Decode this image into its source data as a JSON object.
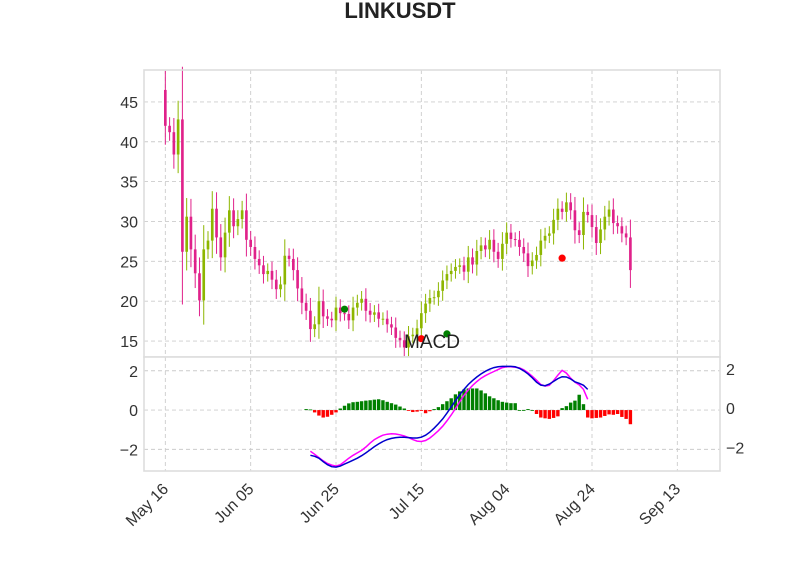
{
  "chart_data": [
    {
      "type": "candlestick",
      "title": "LINKUSDT",
      "ylim": [
        13,
        49
      ],
      "yticks": [
        15,
        20,
        25,
        30,
        35,
        40,
        45
      ],
      "x_start": "2021-05-16",
      "xlim": [
        "2021-05-11",
        "2021-09-23"
      ],
      "x_ticks": [
        "May 16",
        "Jun 05",
        "Jun 25",
        "Jul 15",
        "Aug 04",
        "Aug 24",
        "Sep 13"
      ],
      "grid": true,
      "colors": {
        "up": "#8db600",
        "down": "#e0218a",
        "buy_marker": "#008000",
        "sell_marker": "#ff0000"
      },
      "closes": [
        42,
        41.2,
        38.4,
        42.8,
        26.2,
        30.6,
        26.5,
        23.5,
        20.1,
        26.5,
        27.6,
        31.6,
        28,
        25.5,
        28.6,
        31.4,
        29.4,
        30.3,
        31.4,
        27.7,
        26.8,
        25.3,
        24.5,
        23.4,
        23.8,
        22.7,
        21.5,
        22.1,
        25.7,
        25.3,
        23.9,
        21.6,
        19.8,
        18.8,
        16.5,
        17.1,
        20.0,
        18.1,
        17.8,
        17.6,
        19.2,
        18.5,
        18.4,
        17.6,
        19.2,
        19.8,
        20.3,
        18.8,
        18.3,
        18.6,
        17.8,
        17.8,
        17.1,
        16.7,
        15.4,
        15.1,
        14.2,
        15.6,
        15.8,
        16.6,
        18.5,
        19.7,
        20.4,
        20.5,
        21.3,
        22.6,
        23.4,
        23.8,
        24.3,
        24.5,
        23.7,
        25.5,
        24.6,
        26.3,
        27.0,
        26.5,
        27.7,
        26.2,
        25.3,
        27.2,
        28.6,
        27.8,
        27.7,
        26.8,
        26.0,
        24.4,
        25.1,
        25.8,
        27.6,
        28.2,
        28.5,
        30.2,
        31.6,
        31.2,
        32.4,
        31.4,
        28.9,
        28.3,
        31.2,
        30.8,
        29.3,
        27.3,
        29.0,
        30.6,
        31.5,
        29.8,
        29.4,
        28.5,
        28.0,
        23.9
      ],
      "buy_signals": [
        {
          "date": "2021-06-27",
          "y": 19.0
        },
        {
          "date": "2021-07-21",
          "y": 15.9
        }
      ],
      "sell_signals": [
        {
          "date": "2021-07-15",
          "y": 15.3
        },
        {
          "date": "2021-08-17",
          "y": 25.4
        }
      ]
    },
    {
      "type": "macd",
      "title": "MACD",
      "ylim": [
        -3.1,
        2.7
      ],
      "yticks": [
        -2,
        0,
        2
      ],
      "colors": {
        "macd": "#ff00ff",
        "signal": "#0000cd",
        "hist_pos": "#008000",
        "hist_neg": "#ff0000"
      },
      "start_date": "2021-06-19",
      "macd": [
        -2.1,
        -2.25,
        -2.42,
        -2.58,
        -2.72,
        -2.8,
        -2.85,
        -2.78,
        -2.62,
        -2.45,
        -2.3,
        -2.18,
        -2.05,
        -1.88,
        -1.68,
        -1.5,
        -1.38,
        -1.28,
        -1.23,
        -1.2,
        -1.22,
        -1.26,
        -1.32,
        -1.4,
        -1.5,
        -1.58,
        -1.6,
        -1.55,
        -1.42,
        -1.25,
        -1.05,
        -0.82,
        -0.55,
        -0.25,
        0.08,
        0.42,
        0.75,
        1.02,
        1.25,
        1.45,
        1.62,
        1.75,
        1.86,
        1.96,
        2.06,
        2.16,
        2.2,
        2.2,
        2.18,
        2.15,
        2.05,
        1.9,
        1.72,
        1.52,
        1.3,
        1.22,
        1.26,
        1.5,
        1.78,
        2.02,
        1.88,
        1.62,
        1.42,
        1.28,
        1.05,
        0.55
      ],
      "signal": [
        -2.3,
        -2.35,
        -2.45,
        -2.62,
        -2.78,
        -2.88,
        -2.9,
        -2.85,
        -2.75,
        -2.65,
        -2.55,
        -2.45,
        -2.32,
        -2.18,
        -2.02,
        -1.86,
        -1.72,
        -1.6,
        -1.5,
        -1.44,
        -1.4,
        -1.38,
        -1.38,
        -1.4,
        -1.42,
        -1.42,
        -1.38,
        -1.28,
        -1.12,
        -0.92,
        -0.7,
        -0.45,
        -0.16,
        0.16,
        0.48,
        0.78,
        1.05,
        1.3,
        1.5,
        1.68,
        1.84,
        1.97,
        2.08,
        2.16,
        2.2,
        2.22,
        2.22,
        2.22,
        2.2,
        2.12,
        2.0,
        1.84,
        1.64,
        1.42,
        1.27,
        1.24,
        1.32,
        1.46,
        1.6,
        1.7,
        1.68,
        1.58,
        1.44,
        1.36,
        1.26,
        1.05
      ],
      "histogram_start_date": "2021-06-18",
      "histogram": [
        0.05,
        0.03,
        -0.12,
        -0.28,
        -0.38,
        -0.34,
        -0.24,
        -0.12,
        0.08,
        0.22,
        0.34,
        0.4,
        0.42,
        0.45,
        0.48,
        0.5,
        0.53,
        0.55,
        0.5,
        0.42,
        0.35,
        0.28,
        0.18,
        0.08,
        -0.03,
        -0.1,
        -0.08,
        -0.02,
        -0.16,
        -0.06,
        0.05,
        0.15,
        0.3,
        0.45,
        0.6,
        0.8,
        0.95,
        1.05,
        1.1,
        1.1,
        1.1,
        1.0,
        0.85,
        0.7,
        0.6,
        0.5,
        0.42,
        0.38,
        0.35,
        0.35,
        0.0,
        0.0,
        0.05,
        0.0,
        -0.2,
        -0.38,
        -0.42,
        -0.45,
        -0.4,
        -0.32,
        0.1,
        0.2,
        0.38,
        0.48,
        0.78,
        0.3,
        -0.38,
        -0.42,
        -0.4,
        -0.38,
        -0.3,
        -0.22,
        -0.24,
        -0.2,
        -0.35,
        -0.45,
        -0.72
      ]
    }
  ]
}
